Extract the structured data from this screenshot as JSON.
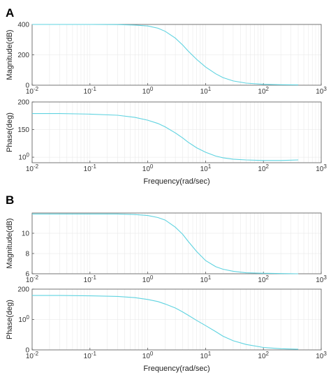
{
  "panels": [
    {
      "label": "A"
    },
    {
      "label": "B"
    }
  ],
  "chart_data": [
    {
      "panel": "A",
      "type": "line",
      "xlabel": "",
      "ylabel": "Magnitude(dB)",
      "xscale": "log",
      "xlim": [
        0.01,
        1000
      ],
      "ylim": [
        0,
        400
      ],
      "xticks": [
        "10-2",
        "10-1",
        "100",
        "101",
        "102",
        "103"
      ],
      "yticks": [
        0,
        200,
        400
      ],
      "x": [
        0.01,
        0.03,
        0.1,
        0.3,
        0.6,
        1,
        1.5,
        2,
        3,
        4,
        5,
        7,
        10,
        15,
        20,
        30,
        50,
        100,
        200,
        400
      ],
      "y": [
        400,
        400,
        400,
        399,
        396,
        390,
        375,
        355,
        310,
        265,
        225,
        170,
        120,
        75,
        50,
        28,
        14,
        6,
        3,
        2
      ]
    },
    {
      "panel": "A",
      "type": "line",
      "xlabel": "Frequency(rad/sec)",
      "ylabel": "Phase(deg)",
      "xscale": "log",
      "xlim": [
        0.01,
        1000
      ],
      "ylim": [
        90,
        200
      ],
      "xticks": [
        "10-2",
        "10-1",
        "100",
        "101",
        "102",
        "103"
      ],
      "yticks": [
        100,
        150,
        200
      ],
      "x": [
        0.01,
        0.03,
        0.1,
        0.3,
        0.6,
        1,
        1.5,
        2,
        3,
        4,
        5,
        7,
        10,
        15,
        20,
        30,
        50,
        100,
        200,
        400
      ],
      "y": [
        179,
        179,
        178,
        176,
        172,
        167,
        161,
        155,
        144,
        135,
        127,
        117,
        109,
        102,
        99,
        96.5,
        95,
        94,
        94,
        95
      ]
    },
    {
      "panel": "B",
      "type": "line",
      "xlabel": "",
      "ylabel": "Magnitude(dB)",
      "xscale": "log",
      "xlim": [
        0.01,
        1000
      ],
      "ylim": [
        6,
        12
      ],
      "xticks": [
        "10-2",
        "10-1",
        "100",
        "101",
        "102",
        "103"
      ],
      "yticks": [
        6,
        8,
        10
      ],
      "x": [
        0.01,
        0.03,
        0.1,
        0.3,
        0.6,
        1,
        1.5,
        2,
        3,
        4,
        5,
        7,
        10,
        15,
        20,
        30,
        50,
        100,
        200,
        400
      ],
      "y": [
        11.9,
        11.9,
        11.9,
        11.9,
        11.85,
        11.75,
        11.55,
        11.3,
        10.6,
        9.9,
        9.2,
        8.2,
        7.3,
        6.7,
        6.45,
        6.25,
        6.1,
        6.05,
        6.02,
        6.0
      ]
    },
    {
      "panel": "B",
      "type": "line",
      "xlabel": "Frequency(rad/sec)",
      "ylabel": "Phase(deg)",
      "xscale": "log",
      "xlim": [
        0.01,
        1000
      ],
      "ylim": [
        0,
        200
      ],
      "xticks": [
        "10-2",
        "10-1",
        "100",
        "101",
        "102",
        "103"
      ],
      "yticks": [
        0,
        100,
        200
      ],
      "x": [
        0.01,
        0.03,
        0.1,
        0.3,
        0.6,
        1,
        1.5,
        2,
        3,
        4,
        5,
        7,
        10,
        15,
        20,
        30,
        50,
        100,
        200,
        400
      ],
      "y": [
        179,
        179,
        178,
        176,
        172,
        166,
        159,
        151,
        138,
        125,
        114,
        97,
        80,
        60,
        45,
        30,
        18,
        8,
        4,
        2
      ]
    }
  ]
}
